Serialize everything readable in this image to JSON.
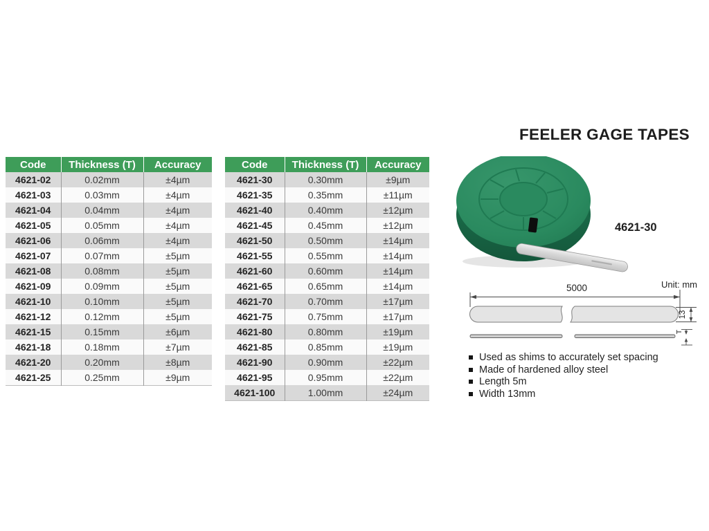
{
  "title": "FEELER GAGE TAPES",
  "product": {
    "code": "4621-30"
  },
  "tables": [
    {
      "headers": [
        "Code",
        "Thickness (T)",
        "Accuracy"
      ],
      "rows": [
        [
          "4621-02",
          "0.02mm",
          "±4µm"
        ],
        [
          "4621-03",
          "0.03mm",
          "±4µm"
        ],
        [
          "4621-04",
          "0.04mm",
          "±4µm"
        ],
        [
          "4621-05",
          "0.05mm",
          "±4µm"
        ],
        [
          "4621-06",
          "0.06mm",
          "±4µm"
        ],
        [
          "4621-07",
          "0.07mm",
          "±5µm"
        ],
        [
          "4621-08",
          "0.08mm",
          "±5µm"
        ],
        [
          "4621-09",
          "0.09mm",
          "±5µm"
        ],
        [
          "4621-10",
          "0.10mm",
          "±5µm"
        ],
        [
          "4621-12",
          "0.12mm",
          "±5µm"
        ],
        [
          "4621-15",
          "0.15mm",
          "±6µm"
        ],
        [
          "4621-18",
          "0.18mm",
          "±7µm"
        ],
        [
          "4621-20",
          "0.20mm",
          "±8µm"
        ],
        [
          "4621-25",
          "0.25mm",
          "±9µm"
        ]
      ]
    },
    {
      "headers": [
        "Code",
        "Thickness (T)",
        "Accuracy"
      ],
      "rows": [
        [
          "4621-30",
          "0.30mm",
          "±9µm"
        ],
        [
          "4621-35",
          "0.35mm",
          "±11µm"
        ],
        [
          "4621-40",
          "0.40mm",
          "±12µm"
        ],
        [
          "4621-45",
          "0.45mm",
          "±12µm"
        ],
        [
          "4621-50",
          "0.50mm",
          "±14µm"
        ],
        [
          "4621-55",
          "0.55mm",
          "±14µm"
        ],
        [
          "4621-60",
          "0.60mm",
          "±14µm"
        ],
        [
          "4621-65",
          "0.65mm",
          "±14µm"
        ],
        [
          "4621-70",
          "0.70mm",
          "±17µm"
        ],
        [
          "4621-75",
          "0.75mm",
          "±17µm"
        ],
        [
          "4621-80",
          "0.80mm",
          "±19µm"
        ],
        [
          "4621-85",
          "0.85mm",
          "±19µm"
        ],
        [
          "4621-90",
          "0.90mm",
          "±22µm"
        ],
        [
          "4621-95",
          "0.95mm",
          "±22µm"
        ],
        [
          "4621-100",
          "1.00mm",
          "±24µm"
        ]
      ]
    }
  ],
  "diagram": {
    "unit_label": "Unit: mm",
    "length_label": "5000",
    "width_label": "13",
    "thickness_label": "T"
  },
  "features": [
    "Used as shims to accurately set spacing",
    "Made of hardened alloy steel",
    "Length 5m",
    "Width 13mm"
  ],
  "colors": {
    "header_green": "#3e9d59",
    "row_gray": "#d9d9d9",
    "disc_green": "#27875d"
  }
}
